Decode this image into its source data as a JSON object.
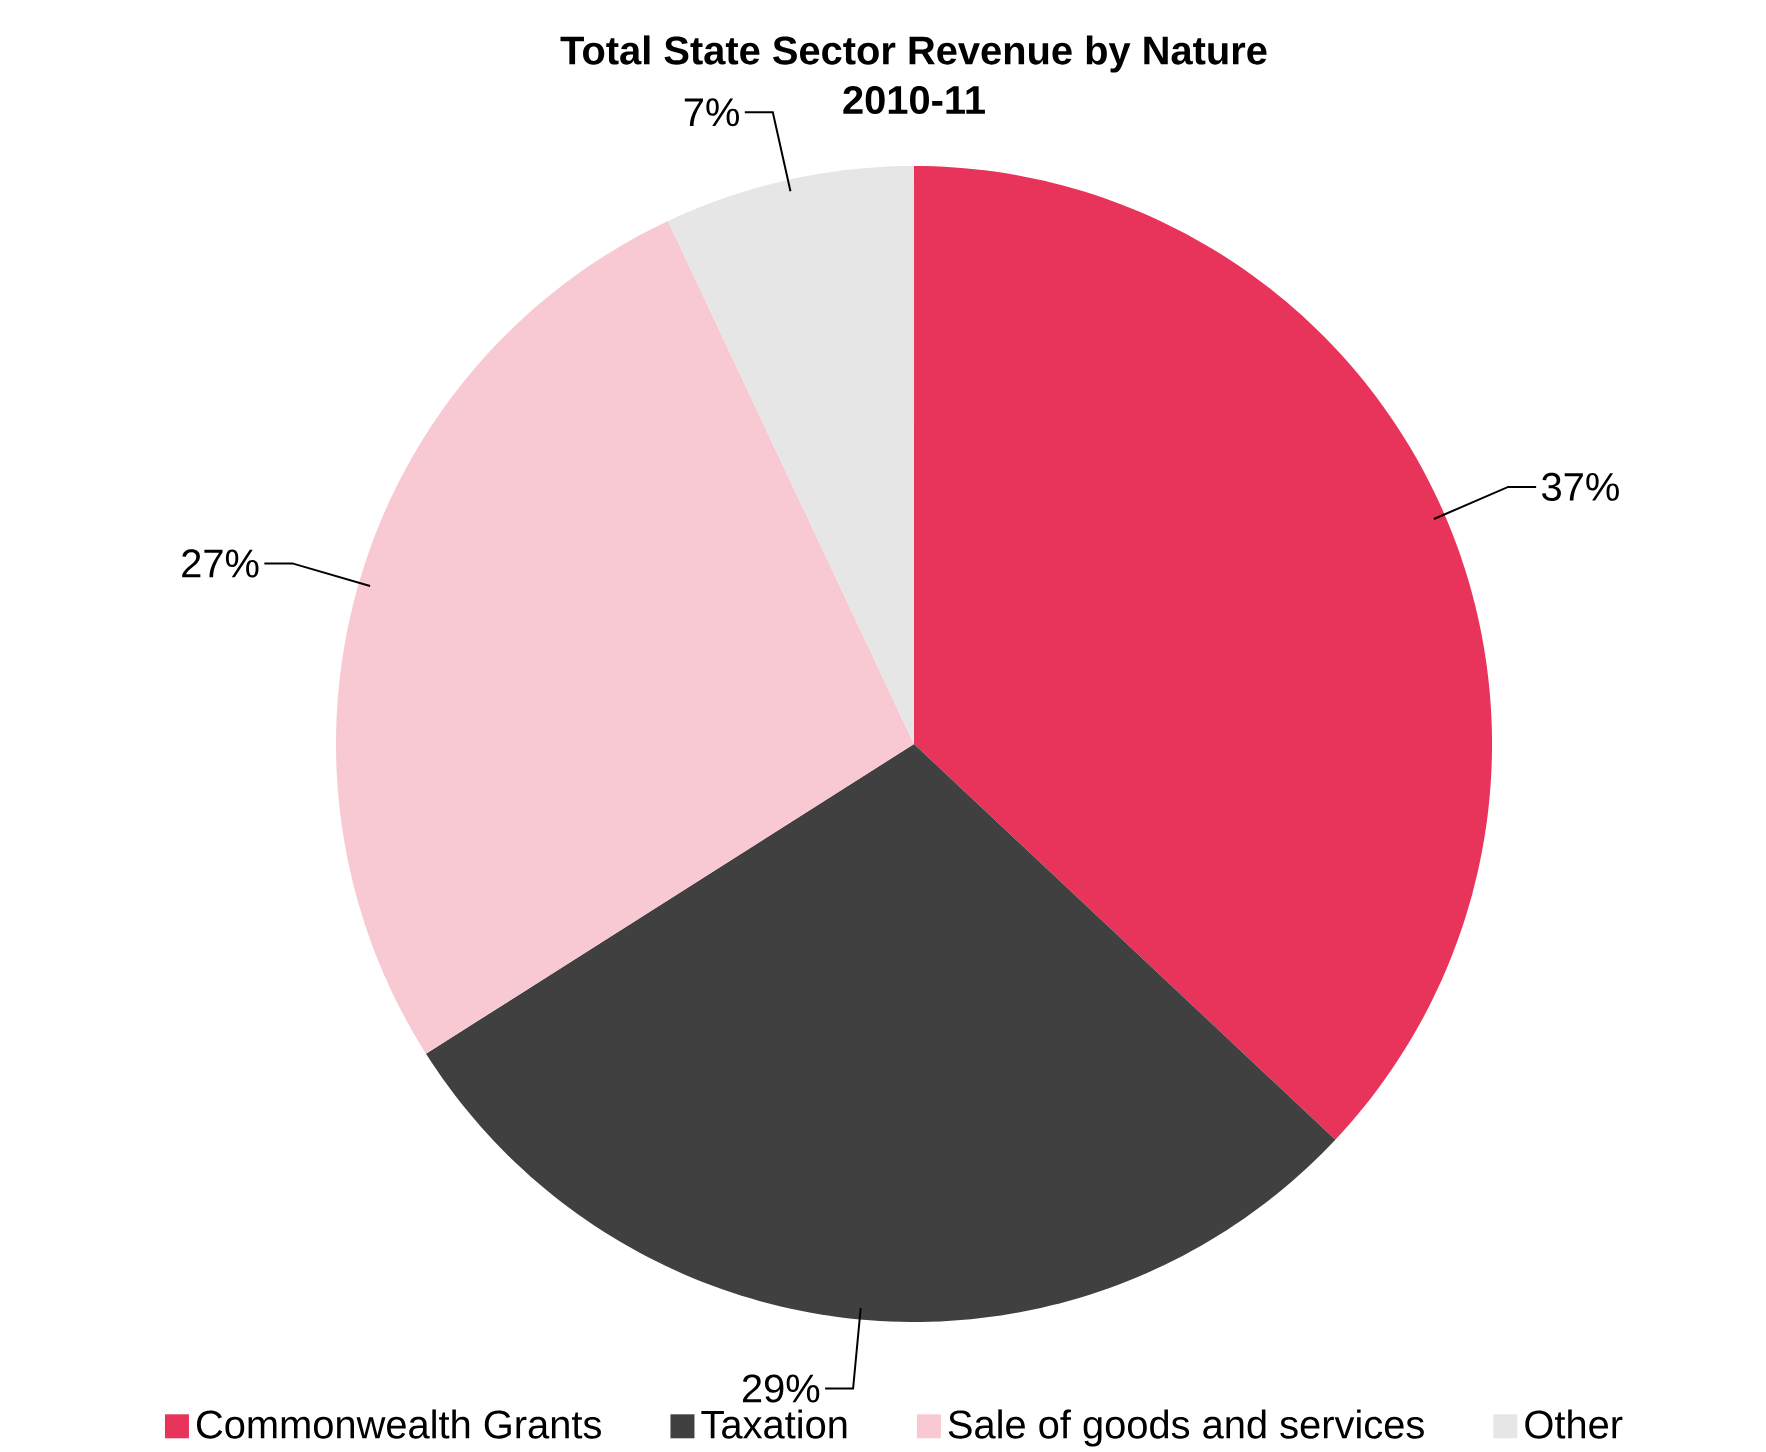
{
  "chart_data": {
    "type": "pie",
    "title": "Total State Sector Revenue by Nature",
    "subtitle": "2010-11",
    "categories": [
      "Commonwealth Grants",
      "Taxation",
      "Sale of goods and services",
      "Other"
    ],
    "values": [
      37,
      29,
      27,
      7
    ],
    "value_labels": [
      "37%",
      "29%",
      "27%",
      "7%"
    ],
    "colors": [
      "#e8345a",
      "#404040",
      "#f8c9d3",
      "#e6e6e6"
    ],
    "legend": "bottom"
  }
}
